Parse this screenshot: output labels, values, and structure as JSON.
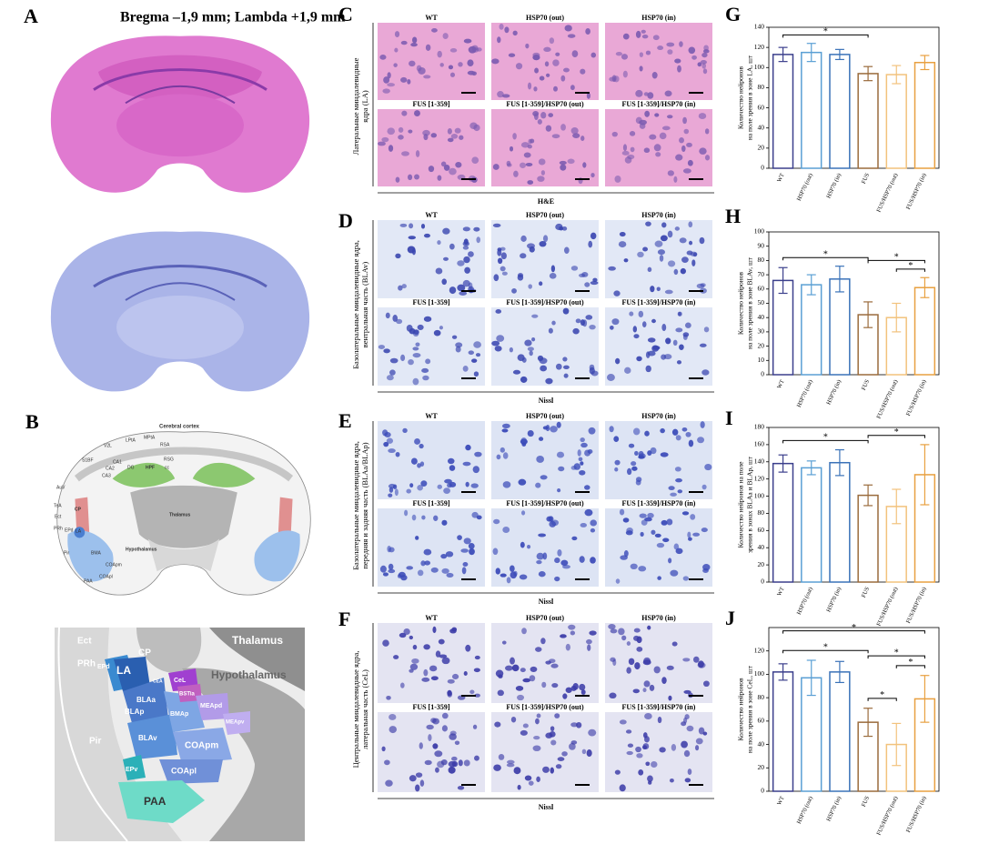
{
  "figure_title": "Bregma –1,9 mm; Lambda +1,9 mm",
  "panel_labels": [
    "A",
    "B",
    "C",
    "D",
    "E",
    "F",
    "G",
    "H",
    "I",
    "J"
  ],
  "atlas_top": {
    "labels": [
      "Cerebral cortex",
      "MPtA",
      "RSA",
      "RSG",
      "LPtA",
      "V2L",
      "S1BF",
      "AuV",
      "TeA",
      "Ect",
      "PRh",
      "Pir",
      "PAA",
      "COApl",
      "COApm",
      "Hypothalamus",
      "Thalamus",
      "HPF",
      "DG",
      "CA1",
      "CA2",
      "CA3",
      "cc",
      "CP",
      "LA",
      "EPd",
      "BMA"
    ]
  },
  "atlas_zoom": {
    "labels": [
      "Ect",
      "PRh",
      "Pir",
      "CP",
      "Thalamus",
      "Hypothalamus",
      "LA",
      "EPd",
      "CeL",
      "BSTia",
      "CEA",
      "BLAa",
      "BLAp",
      "BMAp",
      "MEApd",
      "MEApv",
      "BLAv",
      "COApm",
      "EPv",
      "COApl",
      "PAA"
    ]
  },
  "micrograph_captions": [
    "WT",
    "HSP70 (out)",
    "HSP70 (in)",
    "FUS [1-359]",
    "FUS [1-359]/HSP70 (out)",
    "FUS [1-359]/HSP70 (in)"
  ],
  "micrograph_panels": [
    {
      "region": [
        "Латеральные миндалевидные",
        "ядра (LA)"
      ],
      "stain": "H&E"
    },
    {
      "region": [
        "Базолатеральные миндалевидные ядра,",
        "вентральная часть (BLAv)"
      ],
      "stain": "Nissl"
    },
    {
      "region": [
        "Базолатеральные миндалевидные ядра,",
        "передняя и задняя часть (BLAa/BLAp)"
      ],
      "stain": "Nissl"
    },
    {
      "region": [
        "Центральные миндалевидные ядра,",
        "латеральная часть (CeL)"
      ],
      "stain": "Nissl"
    }
  ],
  "chart_data": [
    {
      "type": "bar",
      "ylabel": [
        "Количество нейронов",
        "на поле зрения в зоне LA, шт"
      ],
      "categories": [
        "WT",
        "HSP70 (out)",
        "HSP70 (in)",
        "FUS",
        "FUS/HSP70 (out)",
        "FUS/HSP70 (in)"
      ],
      "values": [
        113,
        115,
        113,
        94,
        93,
        105
      ],
      "errors": [
        7,
        9,
        5,
        7,
        9,
        7
      ],
      "colors": [
        "#3b3f8c",
        "#5a9fd4",
        "#3a72b8",
        "#9a6b3c",
        "#f2c27c",
        "#e8a040"
      ],
      "ylim": [
        0,
        140
      ],
      "yticks": [
        0,
        20,
        40,
        60,
        80,
        100,
        120,
        140
      ],
      "annotations": [
        {
          "from": "WT",
          "to": "FUS",
          "label": "*"
        }
      ]
    },
    {
      "type": "bar",
      "ylabel": [
        "Количество нейронов",
        "на поле зрения в зоне BLAv, шт"
      ],
      "categories": [
        "WT",
        "HSP70 (out)",
        "HSP70 (in)",
        "FUS",
        "FUS/HSP70 (out)",
        "FUS/HSP70 (in)"
      ],
      "values": [
        66,
        63,
        67,
        42,
        40,
        61
      ],
      "errors": [
        9,
        7,
        9,
        9,
        10,
        7
      ],
      "colors": [
        "#3b3f8c",
        "#5a9fd4",
        "#3a72b8",
        "#9a6b3c",
        "#f2c27c",
        "#e8a040"
      ],
      "ylim": [
        0,
        100
      ],
      "yticks": [
        0,
        10,
        20,
        30,
        40,
        50,
        60,
        70,
        80,
        90,
        100
      ],
      "annotations": [
        {
          "from": "FUS/HSP70 (out)",
          "to": "FUS/HSP70 (in)",
          "label": "*"
        },
        {
          "from": "FUS",
          "to": "FUS/HSP70 (in)",
          "label": "*"
        },
        {
          "from": "WT",
          "to": "FUS",
          "label": "*"
        }
      ]
    },
    {
      "type": "bar",
      "ylabel": [
        "Количество нейронов на поле",
        "зрения в зонах BLAa и BLAp, шт"
      ],
      "categories": [
        "WT",
        "HSP70 (out)",
        "HSP70 (in)",
        "FUS",
        "FUS/HSP70 (out)",
        "FUS/HSP70 (in)"
      ],
      "values": [
        138,
        133,
        139,
        101,
        88,
        125
      ],
      "errors": [
        10,
        8,
        15,
        12,
        20,
        35
      ],
      "colors": [
        "#3b3f8c",
        "#5a9fd4",
        "#3a72b8",
        "#9a6b3c",
        "#f2c27c",
        "#e8a040"
      ],
      "ylim": [
        0,
        180
      ],
      "yticks": [
        0,
        20,
        40,
        60,
        80,
        100,
        120,
        140,
        160,
        180
      ],
      "annotations": [
        {
          "from": "WT",
          "to": "FUS",
          "label": "*"
        },
        {
          "from": "FUS",
          "to": "FUS/HSP70 (in)",
          "label": "*"
        }
      ]
    },
    {
      "type": "bar",
      "ylabel": [
        "Количество нейронов",
        "на поле зрения в зоне CeL, шт"
      ],
      "categories": [
        "WT",
        "HSP70 (out)",
        "HSP70 (in)",
        "FUS",
        "FUS/HSP70 (out)",
        "FUS/HSP70 (in)"
      ],
      "values": [
        102,
        97,
        102,
        59,
        40,
        79
      ],
      "errors": [
        7,
        15,
        9,
        12,
        18,
        20
      ],
      "colors": [
        "#3b3f8c",
        "#5a9fd4",
        "#3a72b8",
        "#9a6b3c",
        "#f2c27c",
        "#e8a040"
      ],
      "ylim": [
        0,
        140
      ],
      "yticks": [
        0,
        20,
        40,
        60,
        80,
        100,
        120
      ],
      "annotations": [
        {
          "from": "FUS",
          "to": "FUS/HSP70 (out)",
          "label": "*"
        },
        {
          "from": "FUS/HSP70 (out)",
          "to": "FUS/HSP70 (in)",
          "label": "*"
        },
        {
          "from": "FUS",
          "to": "FUS/HSP70 (in)",
          "label": "*"
        },
        {
          "from": "WT",
          "to": "FUS",
          "label": "*"
        },
        {
          "from": "WT",
          "to": "FUS/HSP70 (in)",
          "label": "*"
        }
      ]
    }
  ]
}
